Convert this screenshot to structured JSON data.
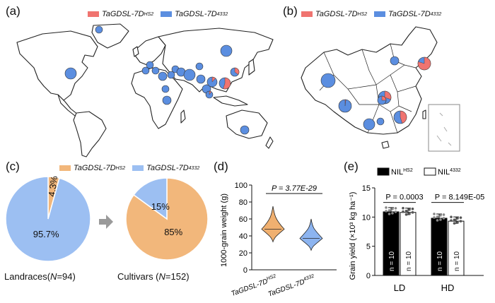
{
  "colors": {
    "hs2_map": "#f07470",
    "d4332_map": "#5b8ee0",
    "hs2_pie": "#f2b77b",
    "d4332_pie": "#9cbff2",
    "violin_hs2": "#f0b070",
    "violin_4332": "#8cb4f0",
    "bar_hs2": "#000000",
    "bar_4332": "#ffffff",
    "arrow": "#9a9a9a"
  },
  "panels": {
    "a": "(a)",
    "b": "(b)",
    "c": "(c)",
    "d": "(d)",
    "e": "(e)"
  },
  "legend_ab": {
    "hs2": "TaGDSL-7D",
    "hs2_sup": "HS2",
    "d4332": "TaGDSL-7D",
    "d4332_sup": "4332"
  },
  "legend_c": {
    "hs2": "TaGDSL-7D",
    "hs2_sup": "HS2",
    "d4332": "TaGDSL-7D",
    "d4332_sup": "4332"
  },
  "chart_data": [
    {
      "id": "c-landraces",
      "type": "pie",
      "title": "Landraces(N=94)",
      "title_prefix": "Landraces(",
      "title_n": "N",
      "title_suffix": "=94)",
      "slices": [
        {
          "name": "TaGDSL-7D HS2",
          "value": 4.3,
          "label": "4.3%"
        },
        {
          "name": "TaGDSL-7D 4332",
          "value": 95.7,
          "label": "95.7%"
        }
      ]
    },
    {
      "id": "c-cultivars",
      "type": "pie",
      "title": "Cultivars (N=152)",
      "title_prefix": "Cultivars (",
      "title_n": "N",
      "title_suffix": "=152)",
      "slices": [
        {
          "name": "TaGDSL-7D HS2",
          "value": 85,
          "label": "85%"
        },
        {
          "name": "TaGDSL-7D 4332",
          "value": 15,
          "label": "15%"
        }
      ]
    },
    {
      "id": "d-violin",
      "type": "violin",
      "ylabel": "1000-grain weight (g)",
      "ylim": [
        0,
        100
      ],
      "yticks": [
        0,
        20,
        40,
        60,
        80,
        100
      ],
      "annotation": "P = 3.77E-29",
      "categories": [
        {
          "label": "TaGDSL-7D",
          "sup": "HS2",
          "min": 33,
          "max": 75,
          "median": 48
        },
        {
          "label": "TaGDSL-7D",
          "sup": "4332",
          "min": 23,
          "max": 60,
          "median": 37
        }
      ]
    },
    {
      "id": "e-bar",
      "type": "bar",
      "ylabel": "Grain yield (×10³ kg ha⁻¹)",
      "ylim": [
        0,
        15
      ],
      "yticks": [
        0,
        5,
        10,
        15
      ],
      "categories": [
        "LD",
        "HD"
      ],
      "series": [
        {
          "name": "NIL",
          "sup": "HS2",
          "values": [
            10.9,
            9.8
          ]
        },
        {
          "name": "NIL",
          "sup": "4332",
          "values": [
            10.8,
            9.3
          ]
        }
      ],
      "bar_labels": [
        "n = 10",
        "n = 10",
        "n = 10",
        "n = 10"
      ],
      "annotations": [
        "P = 0.0003",
        "P = 8.149E-05"
      ],
      "legend": [
        "NIL",
        "NIL"
      ]
    }
  ],
  "map_pies_world": [
    {
      "hs2": 0.0
    },
    {
      "hs2": 0.0
    },
    {
      "hs2": 0.0
    },
    {
      "hs2": 0.0
    },
    {
      "hs2": 0.0
    },
    {
      "hs2": 0.0
    },
    {
      "hs2": 0.0
    },
    {
      "hs2": 0.0
    },
    {
      "hs2": 0.0
    },
    {
      "hs2": 0.0
    },
    {
      "hs2": 0.0
    },
    {
      "hs2": 0.0
    },
    {
      "hs2": 0.0
    },
    {
      "hs2": 0.0
    },
    {
      "hs2": 0.0
    },
    {
      "hs2": 0.0
    },
    {
      "hs2": 0.12
    },
    {
      "hs2": 0.55
    },
    {
      "hs2": 0.35
    },
    {
      "hs2": 0.1
    },
    {
      "hs2": 0.0
    }
  ],
  "map_pies_china": [
    {
      "hs2": 0.0
    },
    {
      "hs2": 0.0
    },
    {
      "hs2": 0.02
    },
    {
      "hs2": 0.8
    },
    {
      "hs2": 0.3
    },
    {
      "hs2": 0.45
    },
    {
      "hs2": 0.25
    },
    {
      "hs2": 0.0
    },
    {
      "hs2": 0.0
    }
  ]
}
